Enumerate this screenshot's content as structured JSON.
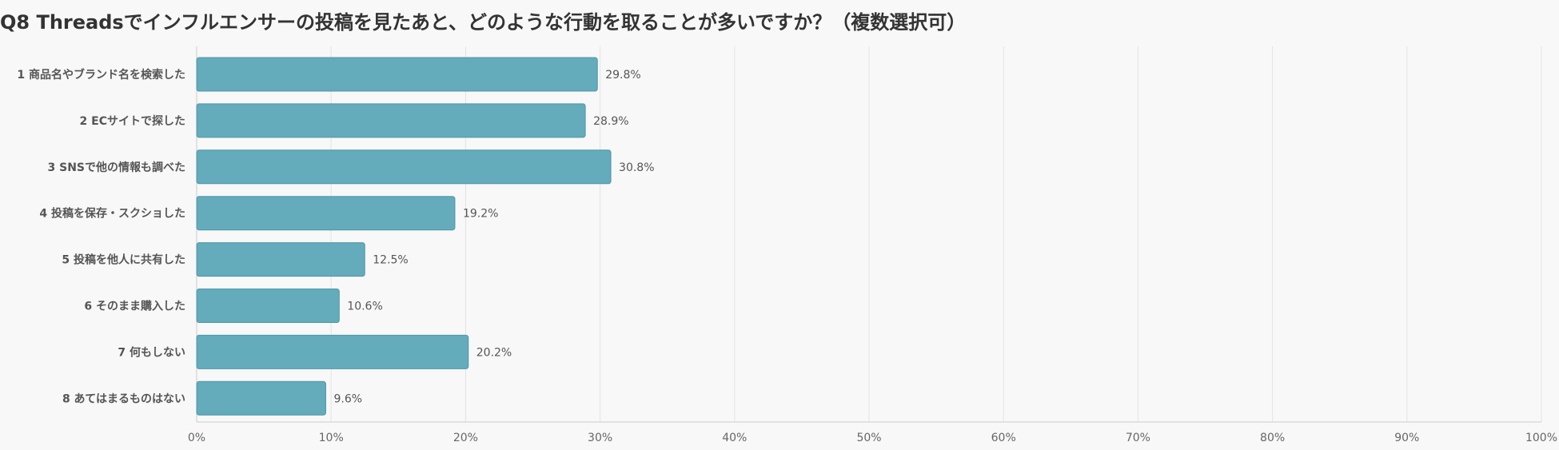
{
  "chart_data": {
    "type": "bar",
    "orientation": "horizontal",
    "title": "Q8 Threadsでインフルエンサーの投稿を見たあと、どのような行動を取ることが多いですか？（複数選択可）",
    "categories": [
      "1 商品名やブランド名を検索した",
      "2 ECサイトで探した",
      "3 SNSで他の情報も調べた",
      "4 投稿を保存・スクショした",
      "5 投稿を他人に共有した",
      "6 そのまま購入した",
      "7 何もしない",
      "8 あてはまるものはない"
    ],
    "values": [
      29.8,
      28.9,
      30.8,
      19.2,
      12.5,
      10.6,
      20.2,
      9.6
    ],
    "value_labels": [
      "29.8%",
      "28.9%",
      "30.8%",
      "19.2%",
      "12.5%",
      "10.6%",
      "20.2%",
      "9.6%"
    ],
    "xlim": [
      0,
      100
    ],
    "x_ticks": [
      "0%",
      "10%",
      "20%",
      "30%",
      "40%",
      "50%",
      "60%",
      "70%",
      "80%",
      "90%",
      "100%"
    ],
    "grid": true,
    "colors": {
      "bar": "#64abbb",
      "bar_border": "#4f97a8",
      "grid": "#e3e3e3",
      "axis": "#cccccc",
      "background": "#f8f8f8"
    }
  }
}
